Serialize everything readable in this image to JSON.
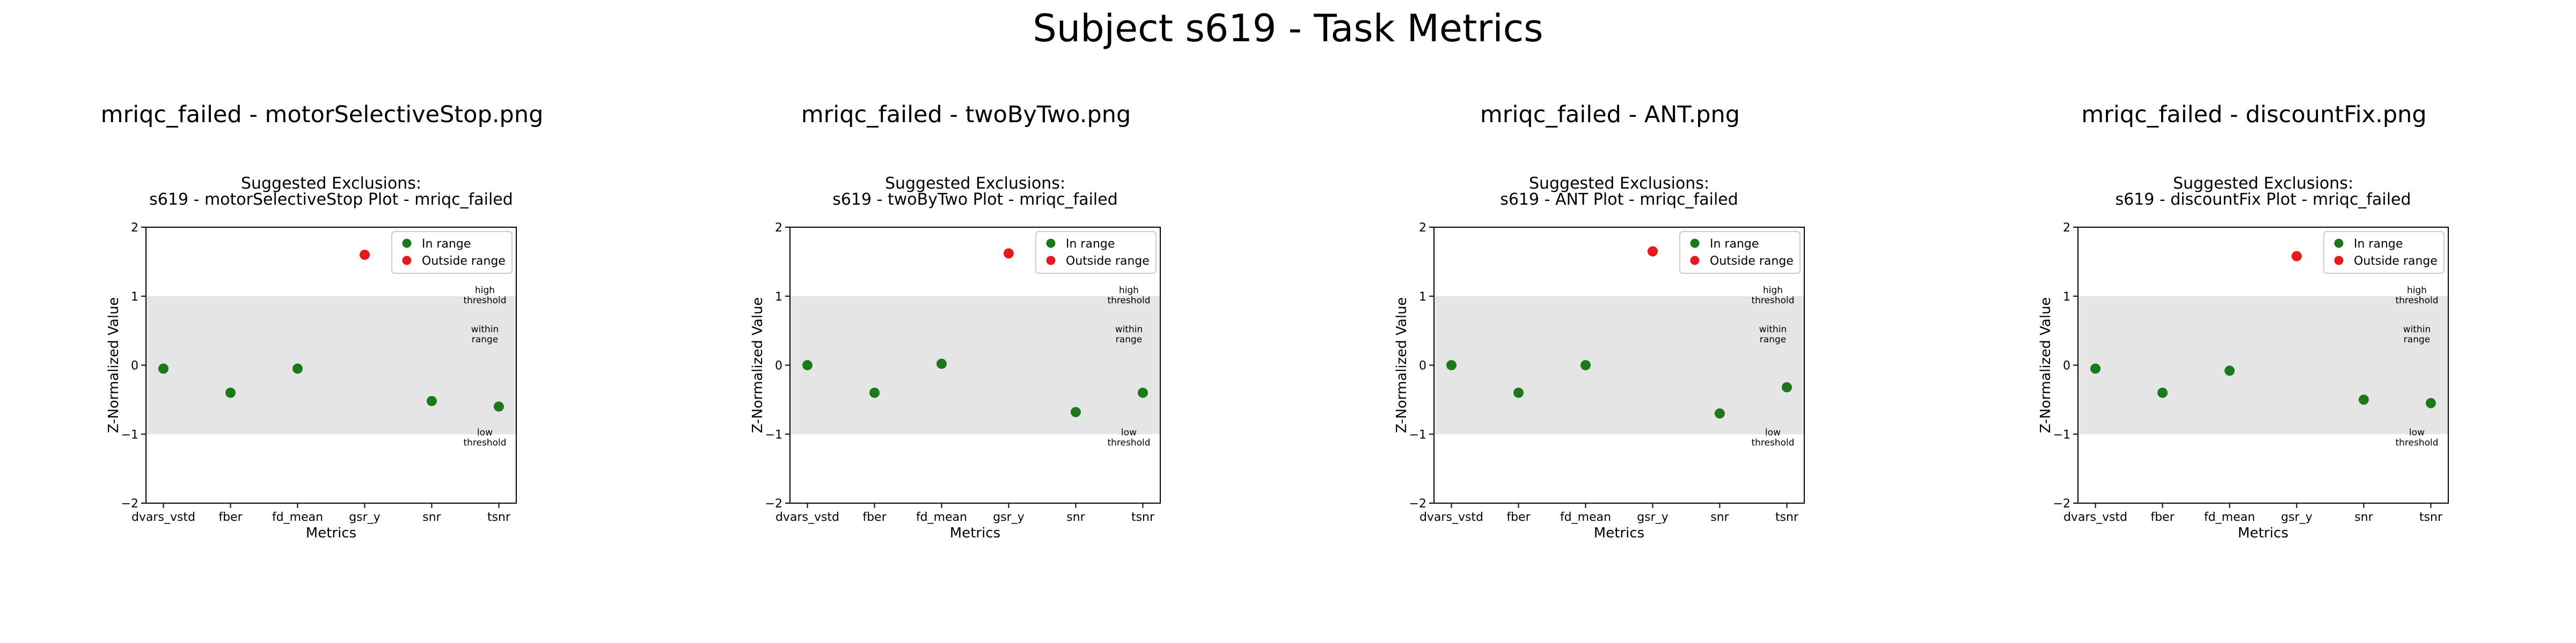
{
  "figure": {
    "title": "Subject s619 - Task Metrics"
  },
  "colors": {
    "in_range": "#1a7a1a",
    "outside_range": "#e8181c",
    "band": "#e5e5e5"
  },
  "chart_data": [
    {
      "type": "scatter",
      "panel_title": "mriqc_failed - motorSelectiveStop.png",
      "title": "Suggested Exclusions:\ns619 - motorSelectiveStop Plot - mriqc_failed",
      "xlabel": "Metrics",
      "ylabel": "Z-Normalized Value",
      "categories": [
        "dvars_vstd",
        "fber",
        "fd_mean",
        "gsr_y",
        "snr",
        "tsnr"
      ],
      "values": [
        -0.05,
        -0.4,
        -0.05,
        1.6,
        -0.52,
        -0.6
      ],
      "status": [
        "in",
        "in",
        "in",
        "out",
        "in",
        "in"
      ],
      "ylim": [
        -2,
        2
      ],
      "yticks": [
        "−2",
        "−1",
        "0",
        "1",
        "2"
      ],
      "band": [
        -1,
        1
      ],
      "legend": {
        "position": "top-right",
        "entries": [
          "In range",
          "Outside range"
        ]
      },
      "annotations": {
        "high": "high\nthreshold",
        "within": "within\nrange",
        "low": "low\nthreshold"
      },
      "grid": false
    },
    {
      "type": "scatter",
      "panel_title": "mriqc_failed - twoByTwo.png",
      "title": "Suggested Exclusions:\ns619 - twoByTwo Plot - mriqc_failed",
      "xlabel": "Metrics",
      "ylabel": "Z-Normalized Value",
      "categories": [
        "dvars_vstd",
        "fber",
        "fd_mean",
        "gsr_y",
        "snr",
        "tsnr"
      ],
      "values": [
        0.0,
        -0.4,
        0.02,
        1.62,
        -0.68,
        -0.4
      ],
      "status": [
        "in",
        "in",
        "in",
        "out",
        "in",
        "in"
      ],
      "ylim": [
        -2,
        2
      ],
      "yticks": [
        "−2",
        "−1",
        "0",
        "1",
        "2"
      ],
      "band": [
        -1,
        1
      ],
      "legend": {
        "position": "top-right",
        "entries": [
          "In range",
          "Outside range"
        ]
      },
      "annotations": {
        "high": "high\nthreshold",
        "within": "within\nrange",
        "low": "low\nthreshold"
      },
      "grid": false
    },
    {
      "type": "scatter",
      "panel_title": "mriqc_failed - ANT.png",
      "title": "Suggested Exclusions:\ns619 - ANT Plot - mriqc_failed",
      "xlabel": "Metrics",
      "ylabel": "Z-Normalized Value",
      "categories": [
        "dvars_vstd",
        "fber",
        "fd_mean",
        "gsr_y",
        "snr",
        "tsnr"
      ],
      "values": [
        0.0,
        -0.4,
        0.0,
        1.65,
        -0.7,
        -0.32
      ],
      "status": [
        "in",
        "in",
        "in",
        "out",
        "in",
        "in"
      ],
      "ylim": [
        -2,
        2
      ],
      "yticks": [
        "−2",
        "−1",
        "0",
        "1",
        "2"
      ],
      "band": [
        -1,
        1
      ],
      "legend": {
        "position": "top-right",
        "entries": [
          "In range",
          "Outside range"
        ]
      },
      "annotations": {
        "high": "high\nthreshold",
        "within": "within\nrange",
        "low": "low\nthreshold"
      },
      "grid": false
    },
    {
      "type": "scatter",
      "panel_title": "mriqc_failed - discountFix.png",
      "title": "Suggested Exclusions:\ns619 - discountFix Plot - mriqc_failed",
      "xlabel": "Metrics",
      "ylabel": "Z-Normalized Value",
      "categories": [
        "dvars_vstd",
        "fber",
        "fd_mean",
        "gsr_y",
        "snr",
        "tsnr"
      ],
      "values": [
        -0.05,
        -0.4,
        -0.08,
        1.58,
        -0.5,
        -0.55
      ],
      "status": [
        "in",
        "in",
        "in",
        "out",
        "in",
        "in"
      ],
      "ylim": [
        -2,
        2
      ],
      "yticks": [
        "−2",
        "−1",
        "0",
        "1",
        "2"
      ],
      "band": [
        -1,
        1
      ],
      "legend": {
        "position": "top-right",
        "entries": [
          "In range",
          "Outside range"
        ]
      },
      "annotations": {
        "high": "high\nthreshold",
        "within": "within\nrange",
        "low": "low\nthreshold"
      },
      "grid": false
    }
  ]
}
